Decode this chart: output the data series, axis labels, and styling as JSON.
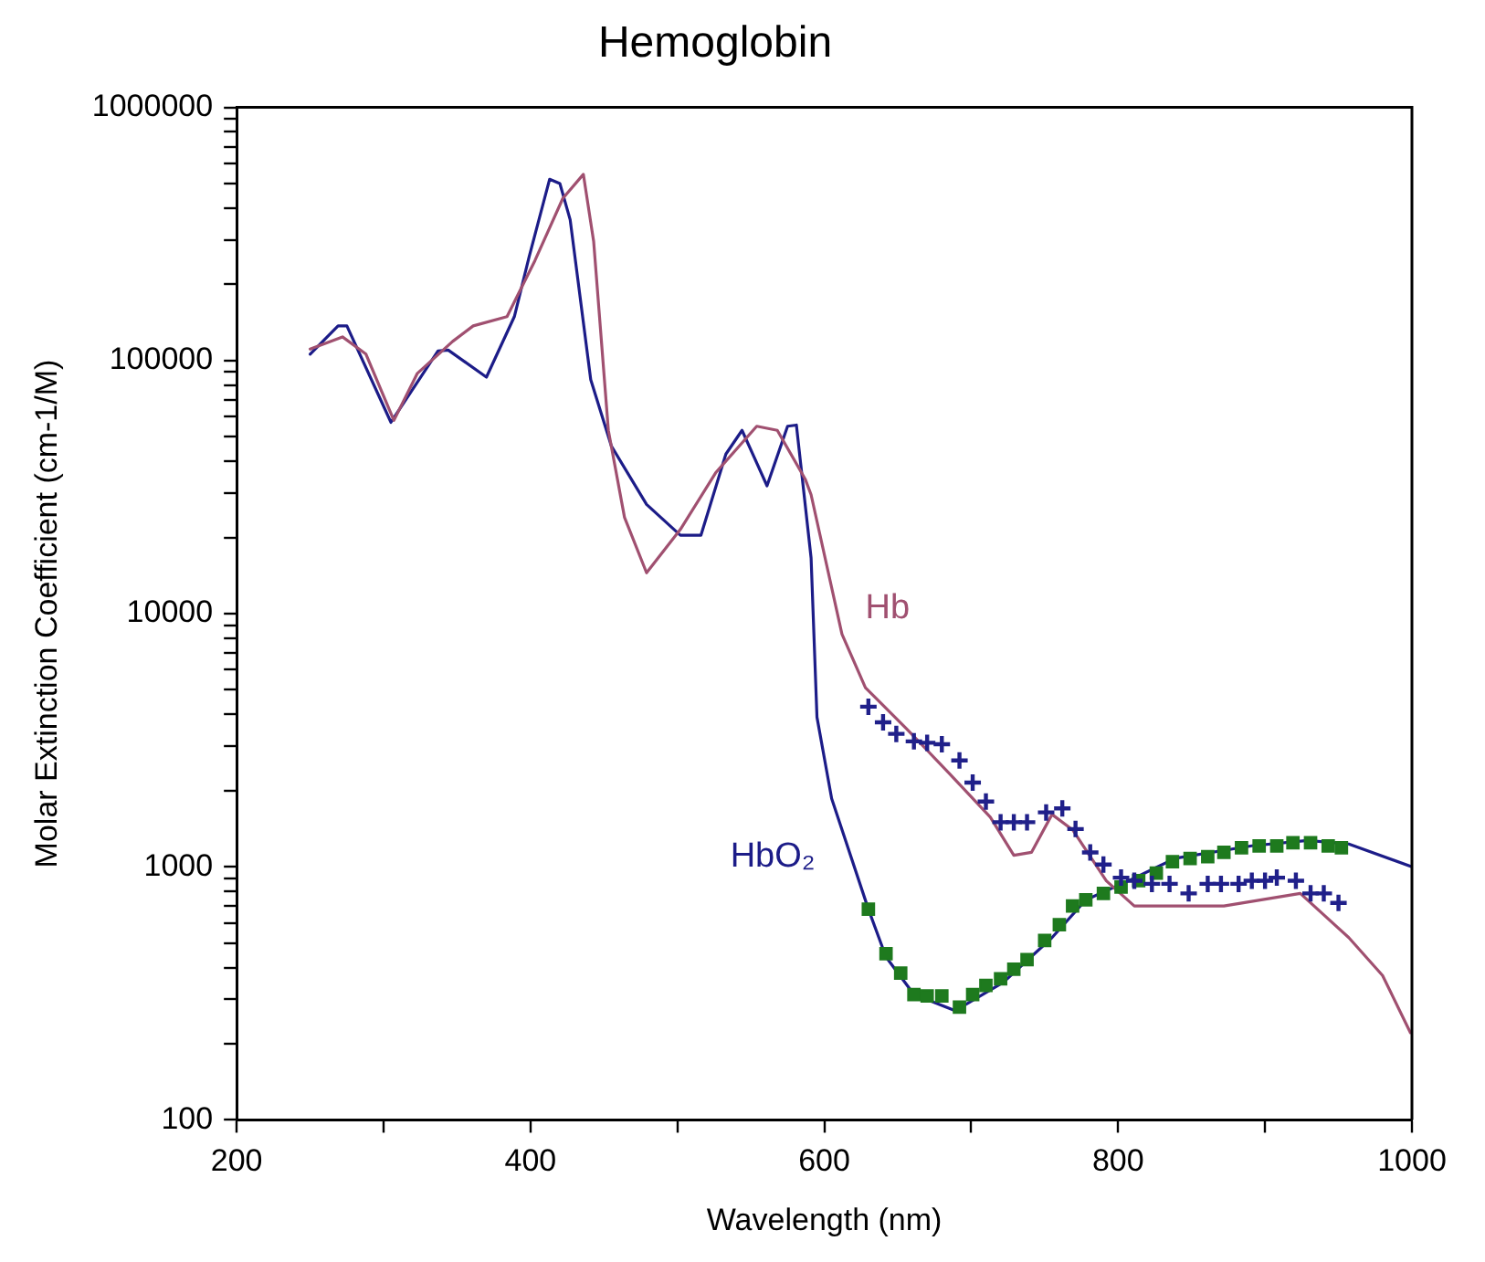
{
  "chart_data": {
    "type": "line",
    "title": "Hemoglobin",
    "xlabel": "Wavelength (nm)",
    "ylabel": "Molar Extinction Coefficient (cm-1/M)",
    "log": "y",
    "grid": false,
    "legend": false,
    "xlim": [
      200,
      1000
    ],
    "xticks": [
      200,
      {
        "value": 300,
        "label": null
      },
      400,
      {
        "value": 500,
        "label": null
      },
      600,
      {
        "value": 700,
        "label": null
      },
      800,
      {
        "value": 900,
        "label": null
      },
      1000
    ],
    "ylim": [
      100,
      1000000
    ],
    "yticks": [
      100,
      {
        "value": 200,
        "label": null
      },
      {
        "value": 300,
        "label": null
      },
      {
        "value": 400,
        "label": null
      },
      {
        "value": 500,
        "label": null
      },
      {
        "value": 600,
        "label": null
      },
      {
        "value": 700,
        "label": null
      },
      {
        "value": 800,
        "label": null
      },
      {
        "value": 900,
        "label": null
      },
      1000,
      {
        "value": 2000,
        "label": null
      },
      {
        "value": 3000,
        "label": null
      },
      {
        "value": 4000,
        "label": null
      },
      {
        "value": 5000,
        "label": null
      },
      {
        "value": 6000,
        "label": null
      },
      {
        "value": 7000,
        "label": null
      },
      {
        "value": 8000,
        "label": null
      },
      {
        "value": 9000,
        "label": null
      },
      10000,
      {
        "value": 20000,
        "label": null
      },
      {
        "value": 30000,
        "label": null
      },
      {
        "value": 40000,
        "label": null
      },
      {
        "value": 50000,
        "label": null
      },
      {
        "value": 60000,
        "label": null
      },
      {
        "value": 70000,
        "label": null
      },
      {
        "value": 80000,
        "label": null
      },
      {
        "value": 90000,
        "label": null
      },
      100000,
      {
        "value": 200000,
        "label": null
      },
      {
        "value": 300000,
        "label": null
      },
      {
        "value": 400000,
        "label": null
      },
      {
        "value": 500000,
        "label": null
      },
      {
        "value": 600000,
        "label": null
      },
      {
        "value": 700000,
        "label": null
      },
      {
        "value": 800000,
        "label": null
      },
      {
        "value": 900000,
        "label": null
      },
      1000000
    ],
    "series": [
      {
        "name": "Hb",
        "type": "line",
        "marker": "none",
        "color": "#a05070",
        "x": [
          250,
          272,
          288,
          307,
          323,
          347,
          361,
          384,
          403,
          422,
          436,
          443,
          453,
          464,
          479,
          502,
          526,
          554,
          568,
          587,
          591,
          612,
          628,
          656,
          685,
          713,
          729,
          741,
          755,
          769,
          792,
          811,
          872,
          924,
          957,
          980,
          999
        ],
        "values": [
          111000,
          124000,
          106000,
          58000,
          89000,
          119000,
          137000,
          149000,
          248000,
          437000,
          544000,
          295000,
          53000,
          24000,
          14500,
          21500,
          36000,
          55000,
          53000,
          34000,
          29500,
          8300,
          5100,
          3510,
          2340,
          1570,
          1110,
          1140,
          1610,
          1400,
          880,
          700,
          700,
          785,
          525,
          372,
          221
        ]
      },
      {
        "name": "HbO₂",
        "type": "line",
        "marker": "none",
        "color": "#1c1c88",
        "x": [
          250,
          269,
          275,
          305,
          337,
          344,
          370,
          389,
          399,
          413,
          420,
          427,
          441,
          455,
          479,
          502,
          516,
          533,
          544,
          561,
          575,
          581,
          591,
          595,
          605,
          630,
          642,
          661,
          689,
          722,
          755,
          778,
          807,
          839,
          891,
          929,
          957,
          1000
        ],
        "values": [
          106000,
          137000,
          137000,
          57000,
          109000,
          110000,
          86000,
          149000,
          256000,
          520000,
          500000,
          360000,
          84000,
          46000,
          27000,
          20400,
          20400,
          42700,
          53000,
          32000,
          55000,
          55600,
          16600,
          3900,
          1860,
          680,
          440,
          313,
          270,
          350,
          525,
          740,
          880,
          1080,
          1210,
          1270,
          1230,
          1000
        ]
      },
      {
        "type": "scatter",
        "marker": "cross",
        "color": "#20208a",
        "x": [
          630,
          640,
          649,
          661,
          670,
          680,
          692,
          701,
          710,
          720,
          729,
          738,
          751,
          762,
          771,
          781,
          790,
          802,
          811,
          823,
          835,
          848,
          861,
          870,
          882,
          891,
          900,
          908,
          921,
          931,
          940,
          950
        ],
        "values": [
          4290,
          3720,
          3350,
          3130,
          3090,
          3050,
          2630,
          2150,
          1810,
          1500,
          1500,
          1500,
          1640,
          1700,
          1410,
          1140,
          1020,
          906,
          881,
          856,
          856,
          785,
          856,
          856,
          856,
          881,
          881,
          906,
          881,
          785,
          785,
          720
        ]
      },
      {
        "type": "scatter",
        "marker": "square",
        "color": "#1e7a1e",
        "x": [
          630,
          642,
          652,
          661,
          670,
          680,
          692,
          701,
          710,
          720,
          729,
          738,
          750,
          760,
          769,
          778,
          790,
          802,
          814,
          826,
          837,
          849,
          861,
          872,
          884,
          896,
          908,
          919,
          931,
          943,
          952
        ],
        "values": [
          680,
          454,
          380,
          313,
          309,
          309,
          279,
          313,
          340,
          361,
          394,
          430,
          512,
          590,
          700,
          740,
          785,
          832,
          881,
          944,
          1047,
          1078,
          1096,
          1141,
          1189,
          1209,
          1209,
          1245,
          1245,
          1209,
          1189
        ]
      }
    ]
  }
}
